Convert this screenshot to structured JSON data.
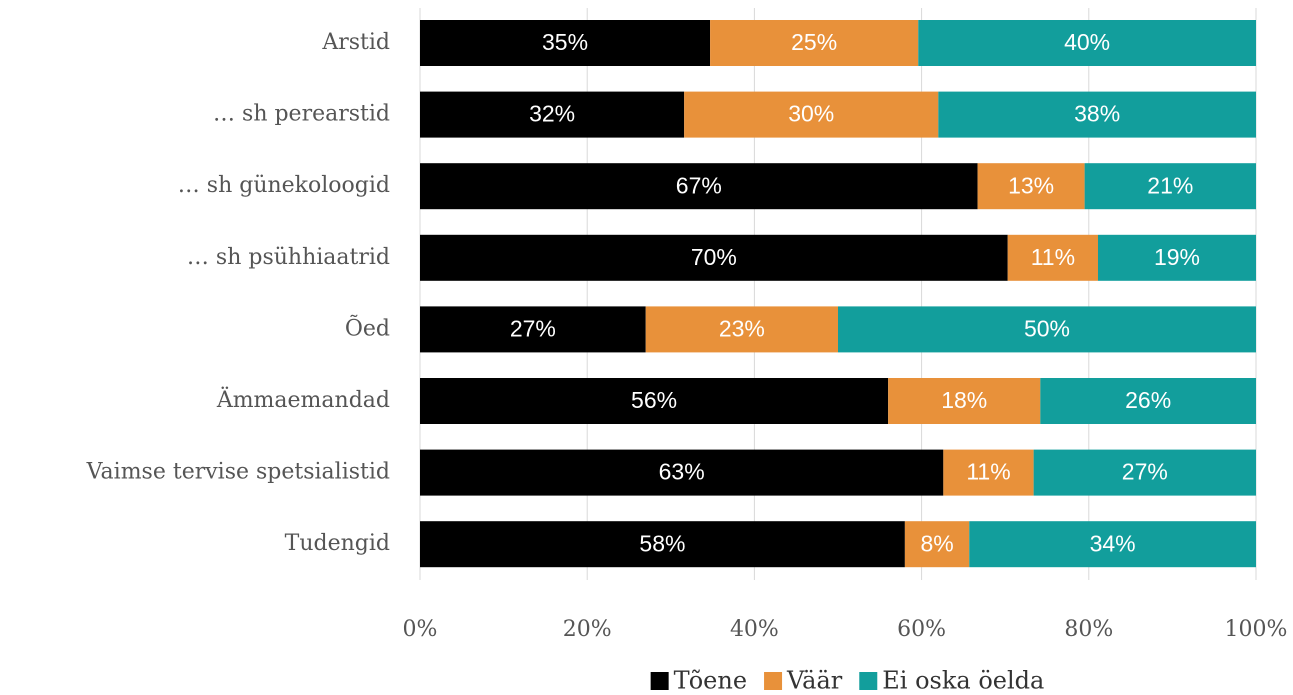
{
  "chart_data": {
    "type": "stacked-bar-horizontal",
    "categories": [
      "Arstid",
      "… sh perearstid",
      "… sh günekoloogid",
      "… sh psühhiaatrid",
      "Õed",
      "Ämmaemandad",
      "Vaimse tervise spetsialistid",
      "Tudengid"
    ],
    "series": [
      {
        "name": "Tõene",
        "color": "#000000",
        "values": [
          34.7,
          31.6,
          66.7,
          70.3,
          27.0,
          56.0,
          62.6,
          58.0
        ],
        "value_labels": [
          "35%",
          "32%",
          "67%",
          "70%",
          "27%",
          "56%",
          "63%",
          "58%"
        ]
      },
      {
        "name": "Väär",
        "color": "#e8913a",
        "values": [
          24.9,
          30.4,
          12.8,
          10.8,
          23.0,
          18.2,
          10.8,
          7.7
        ],
        "value_labels": [
          "25%",
          "30%",
          "13%",
          "11%",
          "23%",
          "18%",
          "11%",
          "8%"
        ]
      },
      {
        "name": "Ei oska öelda",
        "color": "#129e9c",
        "values": [
          40.4,
          38.0,
          20.5,
          18.9,
          50.0,
          25.8,
          26.6,
          34.3
        ],
        "value_labels": [
          "40%",
          "38%",
          "21%",
          "19%",
          "50%",
          "26%",
          "27%",
          "34%"
        ]
      }
    ],
    "xlim": [
      0,
      100
    ],
    "xticks": [
      {
        "value": 0,
        "label": "0%"
      },
      {
        "value": 20,
        "label": "20%"
      },
      {
        "value": 40,
        "label": "40%"
      },
      {
        "value": 60,
        "label": "60%"
      },
      {
        "value": 80,
        "label": "80%"
      },
      {
        "value": 100,
        "label": "100%"
      }
    ],
    "grid": true,
    "legend": "bottom"
  }
}
